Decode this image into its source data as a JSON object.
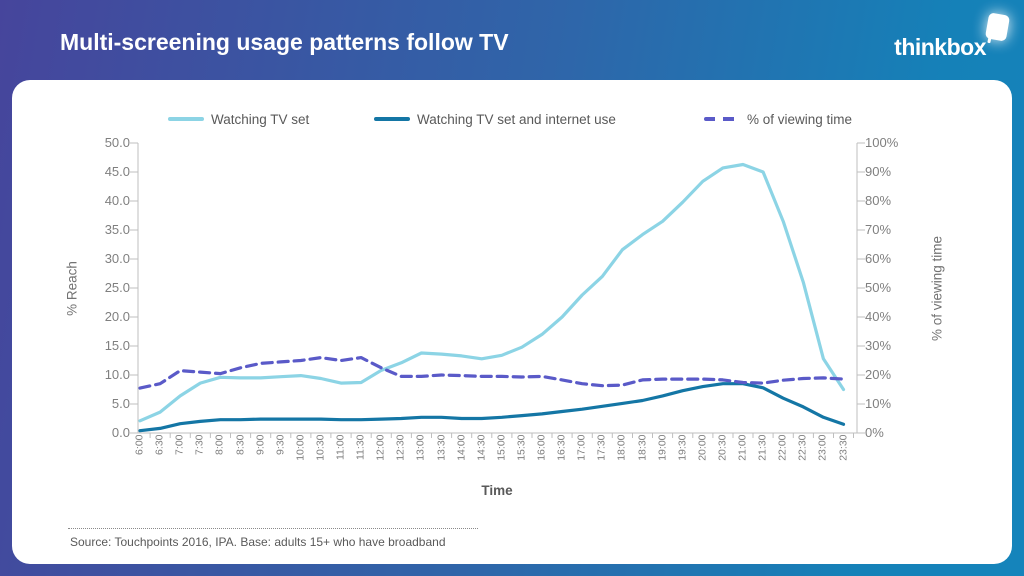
{
  "header": {
    "title": "Multi-screening usage patterns follow TV",
    "logo_text": "thinkbox"
  },
  "footer": {
    "source": "Source: Touchpoints 2016, IPA.  Base: adults 15+ who have broadband"
  },
  "chart_data": {
    "type": "line",
    "xlabel": "Time",
    "x": [
      "6:00",
      "6:30",
      "7:00",
      "7:30",
      "8:00",
      "8:30",
      "9:00",
      "9:30",
      "10:00",
      "10:30",
      "11:00",
      "11:30",
      "12:00",
      "12:30",
      "13:00",
      "13:30",
      "14:00",
      "14:30",
      "15:00",
      "15:30",
      "16:00",
      "16:30",
      "17:00",
      "17:30",
      "18:00",
      "18:30",
      "19:00",
      "19:30",
      "20:00",
      "20:30",
      "21:00",
      "21:30",
      "22:00",
      "22:30",
      "23:00",
      "23:30"
    ],
    "left_axis": {
      "title": "% Reach",
      "min": 0,
      "max": 50,
      "step": 5,
      "ticks": [
        "50.0",
        "45.0",
        "40.0",
        "35.0",
        "30.0",
        "25.0",
        "20.0",
        "15.0",
        "10.0",
        "5.0",
        "0.0"
      ]
    },
    "right_axis": {
      "title": "% of viewing time",
      "min": 0,
      "max": 100,
      "step": 10,
      "ticks": [
        "100%",
        "90%",
        "80%",
        "70%",
        "60%",
        "50%",
        "40%",
        "30%",
        "20%",
        "10%",
        "0%"
      ]
    },
    "grid": false,
    "legend_position": "top",
    "series": [
      {
        "name": "Watching TV set",
        "axis": "left",
        "color": "#8CD4E5",
        "style": "solid",
        "values": [
          2.1,
          3.6,
          6.4,
          8.6,
          9.6,
          9.5,
          9.5,
          9.7,
          9.9,
          9.4,
          8.6,
          8.7,
          10.8,
          12.1,
          13.8,
          13.6,
          13.3,
          12.8,
          13.4,
          14.8,
          17.0,
          20.0,
          23.8,
          27.0,
          31.6,
          34.2,
          36.5,
          39.8,
          43.4,
          45.7,
          46.3,
          45.0,
          36.5,
          26.0,
          12.8,
          7.5
        ]
      },
      {
        "name": "Watching TV set and internet use",
        "axis": "left",
        "color": "#1476A5",
        "style": "solid",
        "values": [
          0.4,
          0.8,
          1.6,
          2.0,
          2.3,
          2.3,
          2.4,
          2.4,
          2.4,
          2.4,
          2.3,
          2.3,
          2.4,
          2.5,
          2.7,
          2.7,
          2.5,
          2.5,
          2.7,
          3.0,
          3.3,
          3.7,
          4.1,
          4.6,
          5.1,
          5.6,
          6.4,
          7.3,
          8.0,
          8.5,
          8.5,
          7.8,
          6.0,
          4.5,
          2.7,
          1.5
        ]
      },
      {
        "name": "% of viewing time",
        "axis": "right",
        "color": "#5A5AC8",
        "style": "dashed",
        "values": [
          15.5,
          17.0,
          21.5,
          21.0,
          20.5,
          22.5,
          24.0,
          24.5,
          25.0,
          26.0,
          25.0,
          26.0,
          22.5,
          19.5,
          19.5,
          20.0,
          19.8,
          19.5,
          19.5,
          19.3,
          19.5,
          18.3,
          17.0,
          16.3,
          16.5,
          18.3,
          18.6,
          18.6,
          18.6,
          18.3,
          17.4,
          17.2,
          18.2,
          18.8,
          19.0,
          18.6
        ]
      }
    ]
  }
}
